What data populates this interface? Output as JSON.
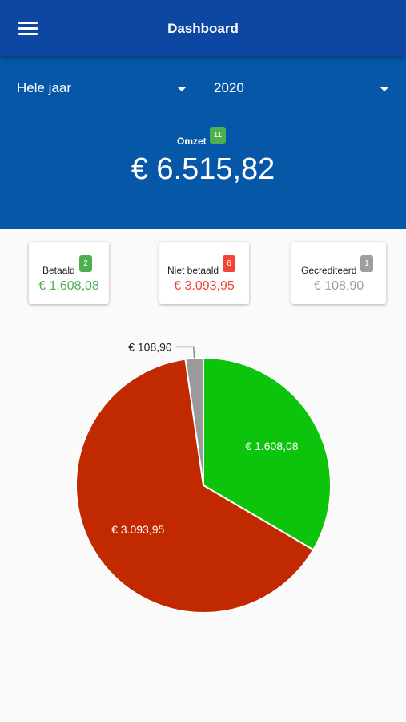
{
  "appbar": {
    "title": "Dashboard",
    "menu_icon": "menu-icon"
  },
  "filters": {
    "period": {
      "selected": "Hele jaar"
    },
    "year": {
      "selected": "2020"
    }
  },
  "summary": {
    "omzet_label": "Omzet",
    "omzet_count": "11",
    "omzet_value": "€ 6.515,82"
  },
  "cards": {
    "paid": {
      "label": "Betaald",
      "count": "2",
      "value": "€ 1.608,08",
      "color": "#4caf50"
    },
    "unpaid": {
      "label": "Niet betaald",
      "count": "6",
      "value": "€ 3.093,95",
      "color": "#f44336"
    },
    "credited": {
      "label": "Gecrediteerd",
      "count": "1",
      "value": "€ 108,90",
      "color": "#9e9e9e"
    }
  },
  "chart_data": {
    "type": "pie",
    "slices": [
      {
        "label": "€ 1.608,08",
        "value": 1608.08,
        "color": "#0bc40b"
      },
      {
        "label": "€ 3.093,95",
        "value": 3093.95,
        "color": "#c12a00"
      },
      {
        "label": "€ 108,90",
        "value": 108.9,
        "color": "#9a9a9a"
      }
    ]
  }
}
